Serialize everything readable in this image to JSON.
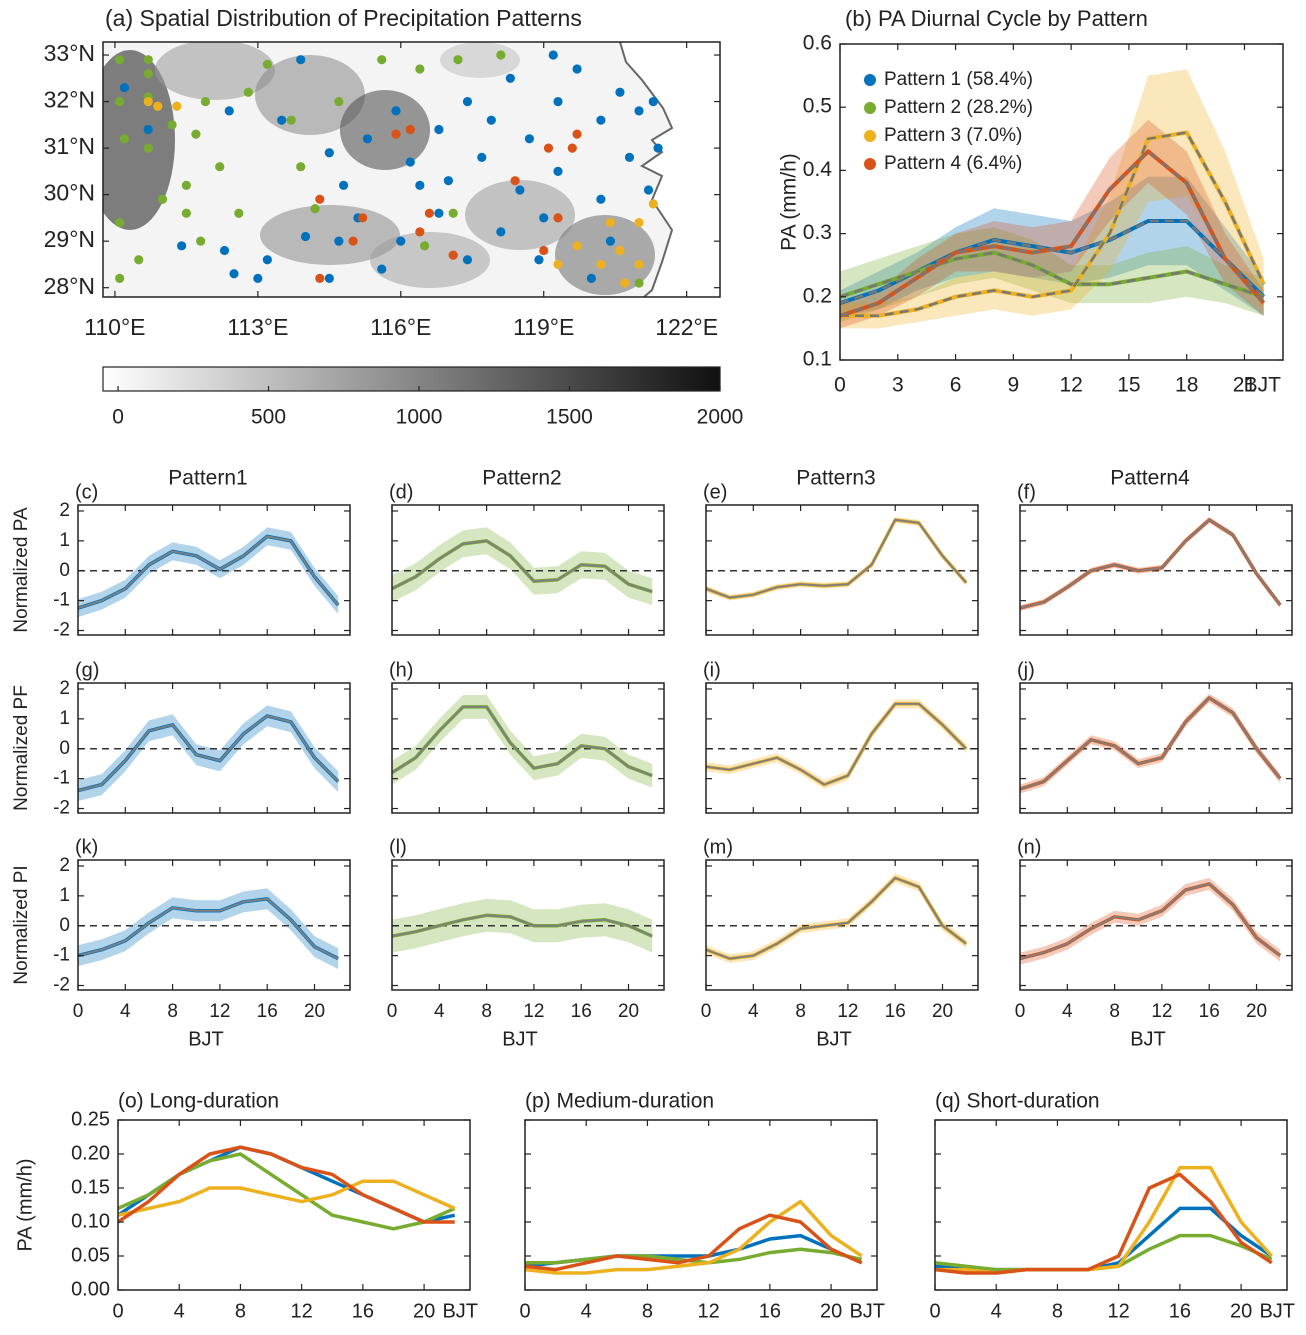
{
  "chart_data": [
    {
      "type": "map-scatter",
      "title": "(a) Spatial Distribution of Precipitation Patterns",
      "xlim": [
        109.75,
        122.7
      ],
      "ylim": [
        27.8,
        33.28
      ],
      "xticks": [
        {
          "value": 110,
          "label": "110°E"
        },
        {
          "value": 113,
          "label": "113°E"
        },
        {
          "value": 116,
          "label": "116°E"
        },
        {
          "value": 119,
          "label": "119°E"
        },
        {
          "value": 122,
          "label": "122°E"
        }
      ],
      "yticks": [
        {
          "value": 28,
          "label": "28°N"
        },
        {
          "value": 29,
          "label": "29°N"
        },
        {
          "value": 30,
          "label": "30°N"
        },
        {
          "value": 31,
          "label": "31°N"
        },
        {
          "value": 32,
          "label": "32°N"
        },
        {
          "value": 33,
          "label": "33°N"
        }
      ],
      "series": [
        {
          "color": "#0072BD",
          "x": [
            110.2,
            110.7,
            111.4,
            112.3,
            112.5,
            113.2,
            113.0,
            114.0,
            114.5,
            114.8,
            115.1,
            115.3,
            115.9,
            116.2,
            116.0,
            115.6,
            116.8,
            117.0,
            117.4,
            117.9,
            117.7,
            118.3,
            118.7,
            118.5,
            118.1,
            117.4,
            118.9,
            119.3,
            119.7,
            120.2,
            120.6,
            121.0,
            120.8,
            120.2,
            121.2,
            121.4,
            120.4,
            120.0,
            119.3,
            119.0,
            116.8,
            116.4,
            114.5,
            113.9,
            113.5,
            114.7,
            121.3,
            119.2,
            112.4
          ],
          "values": [
            32.3,
            31.4,
            28.9,
            28.8,
            28.3,
            28.6,
            28.2,
            29.1,
            28.2,
            30.2,
            29.5,
            31.2,
            31.8,
            30.7,
            29.0,
            28.4,
            31.4,
            30.3,
            32.0,
            31.6,
            30.8,
            32.5,
            31.2,
            30.1,
            29.2,
            28.6,
            28.6,
            32.0,
            32.7,
            31.6,
            32.2,
            31.8,
            30.8,
            29.9,
            30.1,
            31.0,
            29.0,
            28.2,
            30.5,
            29.5,
            29.6,
            30.2,
            30.9,
            32.9,
            31.6,
            29.0,
            32.0,
            33.0,
            31.8
          ]
        },
        {
          "color": "#77AC30",
          "x": [
            110.1,
            110.7,
            110.7,
            110.1,
            110.7,
            110.2,
            110.7,
            111.2,
            111.7,
            111.5,
            111.8,
            110.1,
            110.5,
            110.1,
            111.9,
            112.2,
            112.8,
            113.2,
            113.7,
            113.9,
            114.2,
            114.7,
            115.6,
            116.4,
            117.2,
            118.1,
            117.1,
            116.5,
            112.6,
            111.5,
            111.0,
            121.0
          ],
          "values": [
            32.9,
            32.9,
            32.6,
            32.0,
            32.1,
            31.2,
            31.0,
            31.5,
            31.3,
            29.6,
            29.0,
            29.4,
            28.6,
            28.2,
            32.0,
            30.6,
            32.2,
            32.8,
            31.6,
            30.6,
            29.7,
            32.0,
            32.9,
            32.7,
            32.9,
            33.0,
            29.6,
            28.9,
            29.6,
            30.2,
            29.9,
            28.1
          ]
        },
        {
          "color": "#EDB120",
          "x": [
            110.7,
            110.9,
            111.3,
            121.0,
            121.3,
            120.6,
            119.7,
            120.2,
            121.0,
            120.7,
            119.3,
            120.4
          ],
          "values": [
            32.0,
            31.9,
            31.9,
            29.4,
            29.8,
            28.8,
            28.9,
            28.5,
            28.5,
            28.1,
            28.5,
            29.4
          ]
        },
        {
          "color": "#D95319",
          "x": [
            114.3,
            114.3,
            115.0,
            115.2,
            115.9,
            116.2,
            116.4,
            117.1,
            118.4,
            119.1,
            119.3,
            119.6,
            119.7,
            119.0,
            116.6
          ],
          "values": [
            29.9,
            28.2,
            29.0,
            29.5,
            31.3,
            31.4,
            29.2,
            28.7,
            30.3,
            31.0,
            29.5,
            31.0,
            31.3,
            28.8,
            29.6
          ]
        }
      ],
      "colorbar": {
        "lim": [
          -50,
          2000
        ],
        "ticks": [
          0,
          500,
          1000,
          1500,
          2000
        ],
        "colormap": [
          "#ffffff",
          "#101010"
        ]
      }
    },
    {
      "type": "band-line",
      "title": "(b) PA Diurnal Cycle by Pattern",
      "ylabel": "PA (mm/h)",
      "xlabel": "BJT",
      "x": [
        0,
        2,
        4,
        6,
        8,
        10,
        12,
        14,
        16,
        18,
        20,
        22
      ],
      "xlim": [
        0,
        23
      ],
      "xticks": [
        0,
        3,
        6,
        9,
        12,
        15,
        18,
        21
      ],
      "ylim": [
        0.1,
        0.6
      ],
      "yticks": [
        0.1,
        0.2,
        0.3,
        0.4,
        0.5,
        0.6
      ],
      "legend": "upper left",
      "series": [
        {
          "name": "Pattern 1 (58.4%)",
          "color": "#0072BD",
          "values": [
            0.19,
            0.21,
            0.24,
            0.27,
            0.29,
            0.28,
            0.27,
            0.29,
            0.32,
            0.32,
            0.26,
            0.2
          ],
          "spread": [
            0.02,
            0.03,
            0.03,
            0.04,
            0.05,
            0.05,
            0.05,
            0.06,
            0.07,
            0.07,
            0.05,
            0.03
          ]
        },
        {
          "name": "Pattern 2 (28.2%)",
          "color": "#77AC30",
          "values": [
            0.2,
            0.22,
            0.24,
            0.26,
            0.27,
            0.25,
            0.22,
            0.22,
            0.23,
            0.24,
            0.22,
            0.2
          ],
          "spread": [
            0.04,
            0.04,
            0.04,
            0.04,
            0.04,
            0.04,
            0.03,
            0.03,
            0.04,
            0.04,
            0.03,
            0.03
          ]
        },
        {
          "name": "Pattern 3 (7.0%)",
          "color": "#EDB120",
          "values": [
            0.17,
            0.17,
            0.18,
            0.2,
            0.21,
            0.2,
            0.21,
            0.3,
            0.45,
            0.46,
            0.35,
            0.22
          ],
          "spread": [
            0.02,
            0.02,
            0.02,
            0.03,
            0.03,
            0.03,
            0.03,
            0.06,
            0.1,
            0.1,
            0.08,
            0.04
          ]
        },
        {
          "name": "Pattern 4 (6.4%)",
          "color": "#D95319",
          "values": [
            0.17,
            0.19,
            0.23,
            0.27,
            0.28,
            0.27,
            0.28,
            0.37,
            0.43,
            0.38,
            0.26,
            0.19
          ],
          "spread": [
            0.02,
            0.02,
            0.03,
            0.03,
            0.04,
            0.04,
            0.04,
            0.05,
            0.05,
            0.05,
            0.04,
            0.02
          ]
        }
      ]
    },
    {
      "type": "small-multiples",
      "x": [
        0,
        2,
        4,
        6,
        8,
        10,
        12,
        14,
        16,
        18,
        20,
        22
      ],
      "xlim": [
        0,
        23
      ],
      "xticks": [
        0,
        4,
        8,
        12,
        16,
        20
      ],
      "xlabel": "BJT",
      "ylim": [
        -2.15,
        2.2
      ],
      "yticks": [
        -2,
        -1,
        0,
        1,
        2
      ],
      "hline": 0,
      "columns": [
        "Pattern1",
        "Pattern2",
        "Pattern3",
        "Pattern4"
      ],
      "rows": [
        "Normalized PA",
        "Normalized PF",
        "Normalized PI"
      ],
      "panels": [
        {
          "label": "(c)",
          "color": "#0072BD",
          "spread": 0.3,
          "values": [
            -1.25,
            -1.0,
            -0.6,
            0.2,
            0.65,
            0.5,
            0.05,
            0.5,
            1.15,
            1.0,
            -0.2,
            -1.15
          ]
        },
        {
          "label": "(d)",
          "color": "#77AC30",
          "spread": 0.45,
          "values": [
            -0.6,
            -0.2,
            0.4,
            0.9,
            1.0,
            0.5,
            -0.35,
            -0.3,
            0.2,
            0.15,
            -0.45,
            -0.7
          ]
        },
        {
          "label": "(e)",
          "color": "#EDB120",
          "spread": 0.1,
          "values": [
            -0.6,
            -0.9,
            -0.8,
            -0.55,
            -0.45,
            -0.5,
            -0.45,
            0.2,
            1.7,
            1.6,
            0.5,
            -0.4
          ]
        },
        {
          "label": "(f)",
          "color": "#D95319",
          "spread": 0.1,
          "values": [
            -1.25,
            -1.05,
            -0.55,
            0.0,
            0.2,
            0.0,
            0.1,
            1.0,
            1.7,
            1.2,
            -0.1,
            -1.15
          ]
        },
        {
          "label": "(g)",
          "color": "#0072BD",
          "spread": 0.35,
          "values": [
            -1.4,
            -1.2,
            -0.4,
            0.6,
            0.8,
            -0.2,
            -0.4,
            0.5,
            1.1,
            0.9,
            -0.3,
            -1.1
          ]
        },
        {
          "label": "(h)",
          "color": "#77AC30",
          "spread": 0.4,
          "values": [
            -0.8,
            -0.3,
            0.6,
            1.4,
            1.4,
            0.2,
            -0.65,
            -0.5,
            0.1,
            0.0,
            -0.6,
            -0.9
          ]
        },
        {
          "label": "(i)",
          "color": "#EDB120",
          "spread": 0.15,
          "values": [
            -0.6,
            -0.7,
            -0.5,
            -0.3,
            -0.7,
            -1.2,
            -0.9,
            0.5,
            1.5,
            1.5,
            0.8,
            0.0
          ]
        },
        {
          "label": "(j)",
          "color": "#D95319",
          "spread": 0.15,
          "values": [
            -1.35,
            -1.1,
            -0.4,
            0.3,
            0.1,
            -0.5,
            -0.3,
            0.9,
            1.7,
            1.2,
            0.0,
            -1.0
          ]
        },
        {
          "label": "(k)",
          "color": "#0072BD",
          "spread": 0.35,
          "values": [
            -1.0,
            -0.8,
            -0.5,
            0.1,
            0.6,
            0.5,
            0.5,
            0.8,
            0.9,
            0.2,
            -0.7,
            -1.1
          ]
        },
        {
          "label": "(l)",
          "color": "#77AC30",
          "spread": 0.55,
          "values": [
            -0.35,
            -0.2,
            0.0,
            0.2,
            0.35,
            0.3,
            0.0,
            0.0,
            0.15,
            0.2,
            0.0,
            -0.35
          ]
        },
        {
          "label": "(m)",
          "color": "#EDB120",
          "spread": 0.15,
          "values": [
            -0.8,
            -1.1,
            -1.0,
            -0.6,
            -0.1,
            0.0,
            0.1,
            0.8,
            1.6,
            1.3,
            0.0,
            -0.6
          ]
        },
        {
          "label": "(n)",
          "color": "#D95319",
          "spread": 0.2,
          "values": [
            -1.1,
            -0.9,
            -0.6,
            -0.1,
            0.3,
            0.2,
            0.5,
            1.2,
            1.4,
            0.7,
            -0.4,
            -1.0
          ]
        }
      ]
    },
    {
      "type": "line",
      "title": "(o) Long-duration",
      "ylabel": "PA (mm/h)",
      "xlabel": "BJT",
      "x": [
        0,
        2,
        4,
        6,
        8,
        10,
        12,
        14,
        16,
        18,
        20,
        22
      ],
      "xlim": [
        0,
        23
      ],
      "xticks": [
        0,
        4,
        8,
        12,
        16,
        20
      ],
      "ylim": [
        0,
        0.25
      ],
      "yticks": [
        {
          "value": 0,
          "label": "0.00"
        },
        0.05,
        {
          "value": 0.1,
          "label": "0.10"
        },
        0.15,
        {
          "value": 0.2,
          "label": "0.20"
        },
        0.25
      ],
      "series": [
        {
          "color": "#0072BD",
          "values": [
            0.11,
            0.14,
            0.17,
            0.19,
            0.21,
            0.2,
            0.18,
            0.16,
            0.14,
            0.12,
            0.1,
            0.11
          ]
        },
        {
          "color": "#77AC30",
          "values": [
            0.12,
            0.14,
            0.17,
            0.19,
            0.2,
            0.17,
            0.14,
            0.11,
            0.1,
            0.09,
            0.1,
            0.12
          ]
        },
        {
          "color": "#EDB120",
          "values": [
            0.11,
            0.12,
            0.13,
            0.15,
            0.15,
            0.14,
            0.13,
            0.14,
            0.16,
            0.16,
            0.14,
            0.12
          ]
        },
        {
          "color": "#D95319",
          "values": [
            0.1,
            0.13,
            0.17,
            0.2,
            0.21,
            0.2,
            0.18,
            0.17,
            0.14,
            0.12,
            0.1,
            0.1
          ]
        }
      ]
    },
    {
      "type": "line",
      "title": "(p) Medium-duration",
      "xlabel": "BJT",
      "x": [
        0,
        2,
        4,
        6,
        8,
        10,
        12,
        14,
        16,
        18,
        20,
        22
      ],
      "xlim": [
        0,
        23
      ],
      "xticks": [
        0,
        4,
        8,
        12,
        16,
        20
      ],
      "ylim": [
        0,
        0.25
      ],
      "yticks": [
        0,
        0.05,
        0.1,
        0.15,
        0.2,
        0.25
      ],
      "series": [
        {
          "color": "#0072BD",
          "values": [
            0.035,
            0.04,
            0.045,
            0.05,
            0.05,
            0.05,
            0.05,
            0.06,
            0.075,
            0.08,
            0.06,
            0.04
          ]
        },
        {
          "color": "#77AC30",
          "values": [
            0.04,
            0.04,
            0.045,
            0.05,
            0.05,
            0.045,
            0.04,
            0.045,
            0.055,
            0.06,
            0.055,
            0.045
          ]
        },
        {
          "color": "#EDB120",
          "values": [
            0.03,
            0.025,
            0.025,
            0.03,
            0.03,
            0.035,
            0.04,
            0.06,
            0.1,
            0.13,
            0.08,
            0.05
          ]
        },
        {
          "color": "#D95319",
          "values": [
            0.035,
            0.03,
            0.04,
            0.05,
            0.045,
            0.04,
            0.05,
            0.09,
            0.11,
            0.1,
            0.06,
            0.04
          ]
        }
      ]
    },
    {
      "type": "line",
      "title": "(q) Short-duration",
      "xlabel": "BJT",
      "x": [
        0,
        2,
        4,
        6,
        8,
        10,
        12,
        14,
        16,
        18,
        20,
        22
      ],
      "xlim": [
        0,
        23
      ],
      "xticks": [
        0,
        4,
        8,
        12,
        16,
        20
      ],
      "ylim": [
        0,
        0.25
      ],
      "yticks": [
        0,
        0.05,
        0.1,
        0.15,
        0.2,
        0.25
      ],
      "series": [
        {
          "color": "#0072BD",
          "values": [
            0.035,
            0.03,
            0.03,
            0.03,
            0.03,
            0.03,
            0.04,
            0.08,
            0.12,
            0.12,
            0.08,
            0.05
          ]
        },
        {
          "color": "#77AC30",
          "values": [
            0.04,
            0.035,
            0.03,
            0.03,
            0.03,
            0.03,
            0.035,
            0.06,
            0.08,
            0.08,
            0.065,
            0.045
          ]
        },
        {
          "color": "#EDB120",
          "values": [
            0.03,
            0.03,
            0.025,
            0.03,
            0.03,
            0.03,
            0.035,
            0.1,
            0.18,
            0.18,
            0.1,
            0.05
          ]
        },
        {
          "color": "#D95319",
          "values": [
            0.03,
            0.025,
            0.025,
            0.03,
            0.03,
            0.03,
            0.05,
            0.15,
            0.17,
            0.13,
            0.07,
            0.04
          ]
        }
      ]
    }
  ]
}
